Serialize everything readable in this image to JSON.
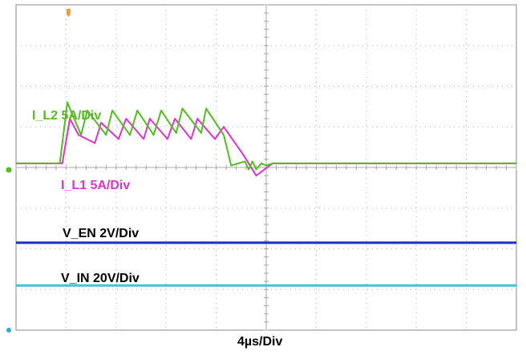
{
  "chart_data": {
    "type": "line",
    "title": "",
    "timebase_label": "4µs/Div",
    "grid": true,
    "divisions": {
      "x": 10,
      "y": 8
    },
    "x_unit": "µs",
    "xlim": [
      0,
      40
    ],
    "series": [
      {
        "name": "I_L2 5A/Div",
        "label": "I_L2 5A/Div",
        "color": "#55bb22",
        "y_unit": "div",
        "x": [
          0,
          3.5,
          4.1,
          5.2,
          5.7,
          7.2,
          7.7,
          9.1,
          9.7,
          11.0,
          11.6,
          12.8,
          13.3,
          14.8,
          15.2,
          16.6,
          17.2,
          18.3,
          18.6,
          18.9,
          19.2,
          19.6,
          20.0,
          20.5,
          40
        ],
        "y": [
          4.1,
          4.1,
          5.6,
          4.8,
          5.4,
          4.8,
          5.4,
          4.8,
          5.4,
          4.8,
          5.4,
          4.85,
          5.45,
          4.85,
          5.45,
          4.8,
          4.05,
          4.15,
          3.95,
          4.15,
          3.95,
          4.1,
          4.05,
          4.1,
          4.1
        ]
      },
      {
        "name": "I_L1 5A/Div",
        "label": "I_L1 5A/Div",
        "color": "#dd33cc",
        "y_unit": "div",
        "x": [
          0,
          3.7,
          4.3,
          5.0,
          6.3,
          6.8,
          8.2,
          8.8,
          10.2,
          10.7,
          12.1,
          12.7,
          14.0,
          14.5,
          15.9,
          16.6,
          18.2,
          19.2,
          20.5,
          40
        ],
        "y": [
          4.1,
          4.1,
          5.2,
          4.8,
          4.6,
          5.1,
          4.7,
          5.2,
          4.7,
          5.2,
          4.7,
          5.2,
          4.7,
          5.2,
          4.7,
          5.0,
          4.3,
          3.8,
          4.1,
          4.1
        ]
      },
      {
        "name": "V_EN 2V/Div",
        "label": "V_EN 2V/Div",
        "color": "#1a2fc4",
        "y_unit": "div",
        "x": [
          0,
          40
        ],
        "y": [
          2.15,
          2.15
        ]
      },
      {
        "name": "V_IN 20V/Div",
        "label": "V_IN 20V/Div",
        "color": "#33c8dd",
        "y_unit": "div",
        "x": [
          0,
          40
        ],
        "y": [
          1.1,
          1.1
        ]
      }
    ]
  },
  "markers": [
    {
      "name": "trigger-marker",
      "color": "#f0a030"
    },
    {
      "name": "channel-ref-marker",
      "color": "#55bb22"
    },
    {
      "name": "channel-ref-marker",
      "color": "#33aacc"
    }
  ]
}
